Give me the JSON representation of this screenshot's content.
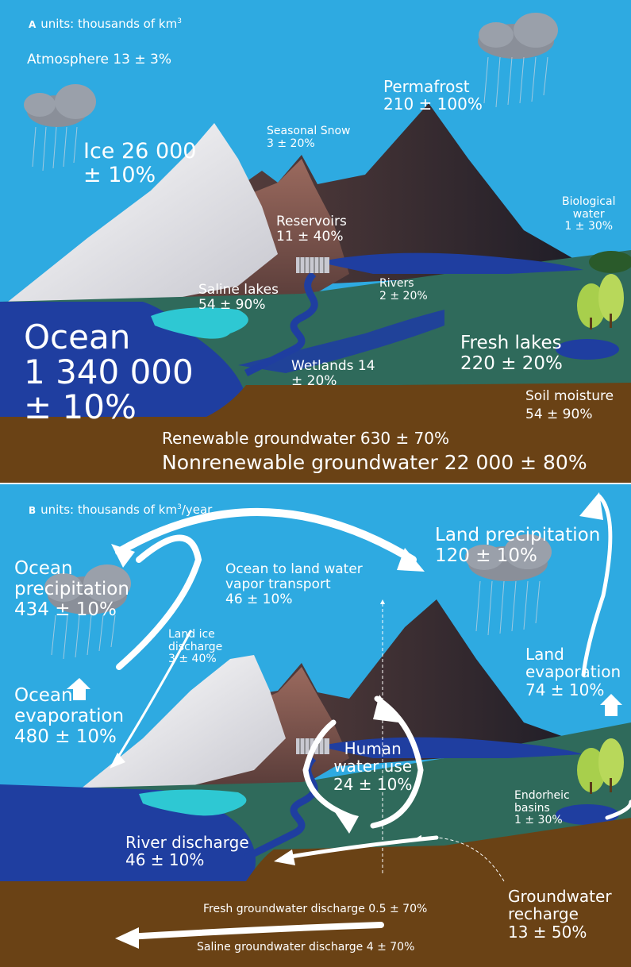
{
  "panel_a": {
    "letter": "A",
    "units_prefix": "units: thousands of km",
    "units_sup": "3",
    "labels": {
      "atmosphere": "Atmosphere 13 ± 3%",
      "permafrost_1": "Permafrost",
      "permafrost_2": "210 ± 100%",
      "ice_1": "Ice  26 000",
      "ice_2": "± 10%",
      "snow_1": "Seasonal Snow",
      "snow_2": "3 ± 20%",
      "bio_1": "Biological",
      "bio_2": "water",
      "bio_3": "1 ± 30%",
      "reservoirs_1": "Reservoirs",
      "reservoirs_2": "11 ± 40%",
      "saline_1": "Saline lakes",
      "saline_2": "54 ± 90%",
      "rivers_1": "Rivers",
      "rivers_2": "2 ± 20%",
      "ocean_1": "Ocean",
      "ocean_2": "1 340 000",
      "ocean_3": "± 10%",
      "fresh_1": "Fresh lakes",
      "fresh_2": "220 ± 20%",
      "wetlands_1": "Wetlands 14",
      "wetlands_2": "± 20%",
      "soil_1": "Soil moisture",
      "soil_2": "54 ± 90%",
      "renew": "Renewable groundwater 630 ± 70%",
      "nonrenew": "Nonrenewable groundwater 22 000 ± 80%"
    }
  },
  "panel_b": {
    "letter": "B",
    "units_prefix": "units: thousands of km",
    "units_sup": "3",
    "units_suffix": "/year",
    "labels": {
      "ocean_precip_1": "Ocean",
      "ocean_precip_2": "precipitation",
      "ocean_precip_3": "434 ± 10%",
      "transport_1": "Ocean to land water",
      "transport_2": "vapor transport",
      "transport_3": "46 ± 10%",
      "land_precip_1": "Land precipitation",
      "land_precip_2": "120 ± 10%",
      "ice_discharge_1": "Land ice",
      "ice_discharge_2": "discharge",
      "ice_discharge_3": "3 ± 40%",
      "land_evap_1": "Land",
      "land_evap_2": "evaporation",
      "land_evap_3": "74 ± 10%",
      "ocean_evap_1": "Ocean",
      "ocean_evap_2": "evaporation",
      "ocean_evap_3": "480 ± 10%",
      "human_1": "Human",
      "human_2": "water use",
      "human_3": "24 ± 10%",
      "endorheic_1": "Endorheic",
      "endorheic_2": "basins",
      "endorheic_3": "1 ± 30%",
      "river_1": "River discharge",
      "river_2": "46 ± 10%",
      "gw_recharge_1": "Groundwater",
      "gw_recharge_2": "recharge",
      "gw_recharge_3": "13 ± 50%",
      "fresh_gw": "Fresh groundwater discharge 0.5 ± 70%",
      "saline_gw": "Saline groundwater discharge  4 ± 70%"
    }
  },
  "colors": {
    "sky": "#2eaae1",
    "ocean": "#1f3ea0",
    "land": "#2f6a5b",
    "soil": "#6a4215",
    "lake": "#2ec8d3",
    "label": "#ffffff"
  }
}
